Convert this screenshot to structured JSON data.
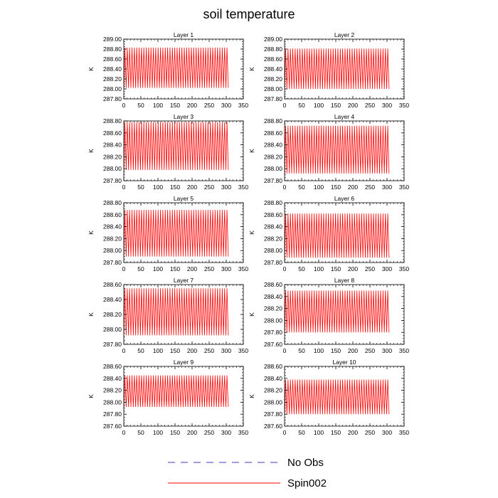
{
  "figure_title": "soil temperature",
  "colors": {
    "spin": "#ff0000",
    "noobs": "#3b3bbf",
    "axis": "#000000"
  },
  "legend": {
    "position": "bottom-center",
    "items": [
      {
        "label": "No Obs",
        "style": "dashed",
        "color": "#3b3bbf"
      },
      {
        "label": "Spin002",
        "style": "solid",
        "color": "#ff0000"
      }
    ]
  },
  "chart_data": [
    {
      "type": "line",
      "title": "Layer 1",
      "ylabel": "K",
      "xlim": [
        0,
        350
      ],
      "ylim": [
        287.8,
        289.0
      ],
      "xticks": [
        "0",
        "50",
        "100",
        "150",
        "200",
        "250",
        "300",
        "350"
      ],
      "yticks": [
        "287.80",
        "288.00",
        "288.20",
        "288.40",
        "288.60",
        "288.80",
        "289.00"
      ],
      "series": [
        {
          "name": "Spin002",
          "x_end": 306,
          "cycles": 44,
          "min": 288.02,
          "max": 288.83,
          "start": 288.02
        }
      ]
    },
    {
      "type": "line",
      "title": "Layer 2",
      "ylabel": "K",
      "xlim": [
        0,
        350
      ],
      "ylim": [
        287.8,
        289.0
      ],
      "xticks": [
        "0",
        "50",
        "100",
        "150",
        "200",
        "250",
        "300",
        "350"
      ],
      "yticks": [
        "287.80",
        "288.00",
        "288.20",
        "288.40",
        "288.60",
        "288.80",
        "289.00"
      ],
      "series": [
        {
          "name": "Spin002",
          "x_end": 306,
          "cycles": 44,
          "min": 288.0,
          "max": 288.81,
          "start": 288.02
        }
      ]
    },
    {
      "type": "line",
      "title": "Layer 3",
      "ylabel": "K",
      "xlim": [
        0,
        350
      ],
      "ylim": [
        287.8,
        288.8
      ],
      "xticks": [
        "0",
        "50",
        "100",
        "150",
        "200",
        "250",
        "300",
        "350"
      ],
      "yticks": [
        "287.80",
        "288.00",
        "288.20",
        "288.40",
        "288.60",
        "288.80"
      ],
      "series": [
        {
          "name": "Spin002",
          "x_end": 306,
          "cycles": 44,
          "min": 287.98,
          "max": 288.78,
          "start": 287.92
        }
      ]
    },
    {
      "type": "line",
      "title": "Layer 4",
      "ylabel": "K",
      "xlim": [
        0,
        350
      ],
      "ylim": [
        287.8,
        288.8
      ],
      "xticks": [
        "0",
        "50",
        "100",
        "150",
        "200",
        "250",
        "300",
        "350"
      ],
      "yticks": [
        "287.80",
        "288.00",
        "288.20",
        "288.40",
        "288.60",
        "288.80"
      ],
      "series": [
        {
          "name": "Spin002",
          "x_end": 306,
          "cycles": 44,
          "min": 287.92,
          "max": 288.72,
          "start": 287.88
        }
      ]
    },
    {
      "type": "line",
      "title": "Layer 5",
      "ylabel": "K",
      "xlim": [
        0,
        350
      ],
      "ylim": [
        287.8,
        288.8
      ],
      "xticks": [
        "0",
        "50",
        "100",
        "150",
        "200",
        "250",
        "300",
        "350"
      ],
      "yticks": [
        "287.80",
        "288.00",
        "288.20",
        "288.40",
        "288.60",
        "288.80"
      ],
      "series": [
        {
          "name": "Spin002",
          "x_end": 306,
          "cycles": 44,
          "min": 287.9,
          "max": 288.68,
          "start": 287.85
        }
      ]
    },
    {
      "type": "line",
      "title": "Layer 6",
      "ylabel": "K",
      "xlim": [
        0,
        350
      ],
      "ylim": [
        287.8,
        288.8
      ],
      "xticks": [
        "0",
        "50",
        "100",
        "150",
        "200",
        "250",
        "300",
        "350"
      ],
      "yticks": [
        "287.80",
        "288.00",
        "288.20",
        "288.40",
        "288.60",
        "288.80"
      ],
      "series": [
        {
          "name": "Spin002",
          "x_end": 306,
          "cycles": 44,
          "min": 287.88,
          "max": 288.62,
          "start": 287.82
        }
      ]
    },
    {
      "type": "line",
      "title": "Layer 7",
      "ylabel": "K",
      "xlim": [
        0,
        350
      ],
      "ylim": [
        287.8,
        288.6
      ],
      "xticks": [
        "0",
        "50",
        "100",
        "150",
        "200",
        "250",
        "300",
        "350"
      ],
      "yticks": [
        "287.80",
        "288.00",
        "288.20",
        "288.40",
        "288.60"
      ],
      "series": [
        {
          "name": "Spin002",
          "x_end": 306,
          "cycles": 44,
          "min": 287.92,
          "max": 288.55,
          "start": 287.82
        }
      ]
    },
    {
      "type": "line",
      "title": "Layer 8",
      "ylabel": "K",
      "xlim": [
        0,
        350
      ],
      "ylim": [
        287.6,
        288.6
      ],
      "xticks": [
        "0",
        "50",
        "100",
        "150",
        "200",
        "250",
        "300",
        "350"
      ],
      "yticks": [
        "287.60",
        "287.80",
        "288.00",
        "288.20",
        "288.40",
        "288.60"
      ],
      "series": [
        {
          "name": "Spin002",
          "x_end": 306,
          "cycles": 44,
          "min": 287.8,
          "max": 288.5,
          "start": 287.78
        }
      ]
    },
    {
      "type": "line",
      "title": "Layer 9",
      "ylabel": "K",
      "xlim": [
        0,
        350
      ],
      "ylim": [
        287.6,
        288.6
      ],
      "xticks": [
        "0",
        "50",
        "100",
        "150",
        "200",
        "250",
        "300",
        "350"
      ],
      "yticks": [
        "287.60",
        "287.80",
        "288.00",
        "288.20",
        "288.40",
        "288.60"
      ],
      "series": [
        {
          "name": "Spin002",
          "x_end": 306,
          "cycles": 44,
          "min": 287.92,
          "max": 288.45,
          "start": 287.82
        }
      ]
    },
    {
      "type": "line",
      "title": "Layer 10",
      "ylabel": "K",
      "xlim": [
        0,
        350
      ],
      "ylim": [
        287.6,
        288.6
      ],
      "xticks": [
        "0",
        "50",
        "100",
        "150",
        "200",
        "250",
        "300",
        "350"
      ],
      "yticks": [
        "287.60",
        "287.80",
        "288.00",
        "288.20",
        "288.40",
        "288.60"
      ],
      "series": [
        {
          "name": "Spin002",
          "x_end": 306,
          "cycles": 44,
          "min": 287.8,
          "max": 288.38,
          "start": 287.85
        }
      ]
    }
  ]
}
